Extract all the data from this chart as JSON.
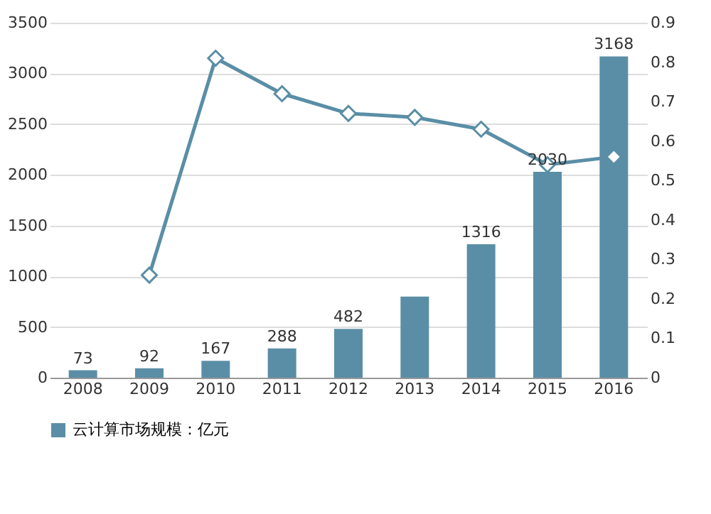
{
  "chart_data": {
    "type": "bar",
    "categories": [
      "2008",
      "2009",
      "2010",
      "2011",
      "2012",
      "2013",
      "2014",
      "2015",
      "2016"
    ],
    "series": [
      {
        "name": "云计算市场规模：亿元",
        "color": "#5a8ea6",
        "values": [
          73,
          92,
          167,
          288,
          482,
          800,
          1316,
          2030,
          3168
        ],
        "value_labels": [
          "73",
          "92",
          "167",
          "288",
          "482",
          null,
          "1316",
          "2030",
          "3168"
        ]
      },
      {
        "type": "line",
        "axis": "y2",
        "color": "#5a8ea6",
        "marker": "diamond",
        "values": [
          null,
          0.26,
          0.81,
          0.72,
          0.67,
          0.66,
          0.63,
          0.54,
          0.56
        ]
      }
    ],
    "ylim": [
      0,
      3500
    ],
    "yticks": [
      0,
      500,
      1000,
      1500,
      2000,
      2500,
      3000,
      3500
    ],
    "y2lim": [
      0,
      0.9
    ],
    "y2ticks": [
      0,
      0.1,
      0.2,
      0.3,
      0.4,
      0.5,
      0.6,
      0.7,
      0.8,
      0.9
    ],
    "grid": "y",
    "legend": "bottom"
  }
}
